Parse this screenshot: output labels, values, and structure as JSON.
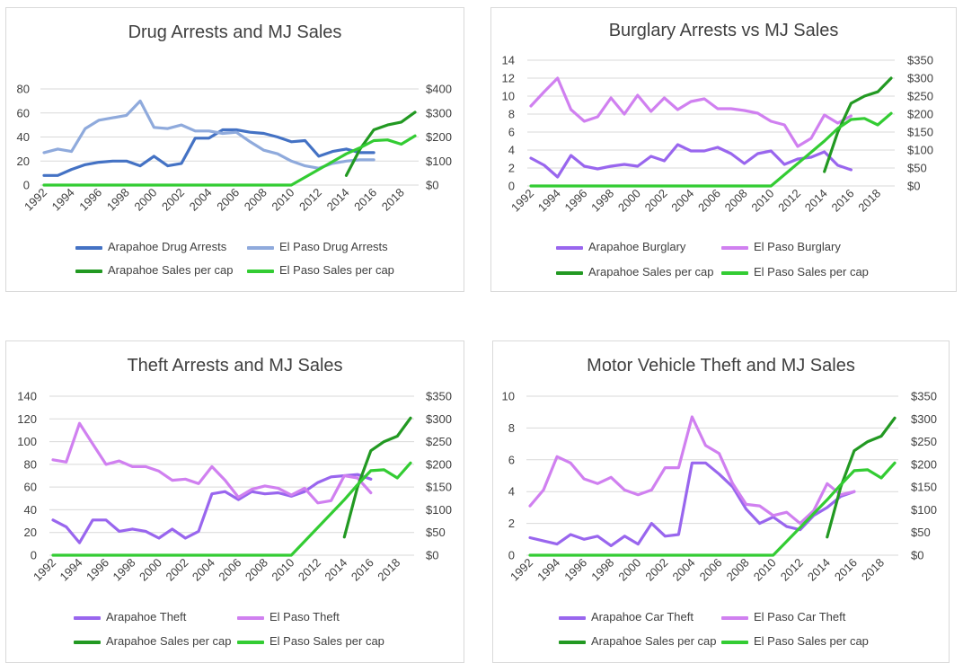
{
  "chart_data": [
    {
      "type": "line",
      "title": "Drug Arrests and MJ Sales",
      "x_ticks": [
        "1992",
        "1994",
        "1996",
        "1998",
        "2000",
        "2002",
        "2004",
        "2006",
        "2008",
        "2010",
        "2012",
        "2014",
        "2016",
        "2018"
      ],
      "y_left": {
        "range": [
          0,
          80
        ],
        "ticks": [
          "0",
          "20",
          "40",
          "60",
          "80"
        ],
        "values": [
          0,
          20,
          40,
          60,
          80
        ]
      },
      "y_right": {
        "range": [
          0,
          400
        ],
        "ticks": [
          "$0",
          "$100",
          "$200",
          "$300",
          "$400"
        ],
        "values": [
          0,
          100,
          200,
          300,
          400
        ]
      },
      "series": [
        {
          "name": "Arapahoe Drug Arrests",
          "axis": "left",
          "color": "#4472c4",
          "x": [
            1992,
            1993,
            1994,
            1995,
            1996,
            1997,
            1998,
            1999,
            2000,
            2001,
            2002,
            2003,
            2004,
            2005,
            2006,
            2007,
            2008,
            2009,
            2010,
            2011,
            2012,
            2013,
            2014,
            2015,
            2016
          ],
          "y": [
            8,
            8,
            13,
            17,
            19,
            20,
            20,
            16,
            24,
            16,
            18,
            39,
            39,
            46,
            46,
            44,
            43,
            40,
            36,
            37,
            24,
            28,
            30,
            27,
            27
          ]
        },
        {
          "name": "El Paso Drug Arrests",
          "axis": "left",
          "color": "#8faadc",
          "x": [
            1992,
            1993,
            1994,
            1995,
            1996,
            1997,
            1998,
            1999,
            2000,
            2001,
            2002,
            2003,
            2004,
            2005,
            2006,
            2007,
            2008,
            2009,
            2010,
            2011,
            2012,
            2013,
            2014,
            2015,
            2016
          ],
          "y": [
            27,
            30,
            28,
            47,
            54,
            56,
            58,
            70,
            48,
            47,
            50,
            45,
            45,
            43,
            44,
            36,
            29,
            26,
            20,
            16,
            14,
            18,
            20,
            21,
            21
          ]
        },
        {
          "name": "Arapahoe Sales per cap",
          "axis": "right",
          "color": "#229922",
          "x": [
            2014,
            2015,
            2016,
            2017,
            2018,
            2019
          ],
          "y": [
            40,
            150,
            230,
            250,
            262,
            303
          ]
        },
        {
          "name": "El Paso Sales per cap",
          "axis": "right",
          "color": "#33cc33",
          "x": [
            1992,
            2010,
            2014,
            2015,
            2016,
            2017,
            2018,
            2019
          ],
          "y": [
            0,
            0,
            130,
            155,
            185,
            188,
            170,
            205
          ]
        }
      ],
      "legend": [
        "Arapahoe Drug Arrests",
        "El Paso Drug Arrests",
        "Arapahoe Sales per cap",
        "El Paso Sales per cap"
      ],
      "legend_placement": "bottom",
      "grid": "horizontal"
    },
    {
      "type": "line",
      "title": "Burglary Arrests vs MJ Sales",
      "x_ticks": [
        "1992",
        "1994",
        "1996",
        "1998",
        "2000",
        "2002",
        "2004",
        "2006",
        "2008",
        "2010",
        "2012",
        "2014",
        "2016",
        "2018"
      ],
      "y_left": {
        "range": [
          0,
          14
        ],
        "ticks": [
          "0",
          "2",
          "4",
          "6",
          "8",
          "10",
          "12",
          "14"
        ],
        "values": [
          0,
          2,
          4,
          6,
          8,
          10,
          12,
          14
        ]
      },
      "y_right": {
        "range": [
          0,
          350
        ],
        "ticks": [
          "$0",
          "$50",
          "$100",
          "$150",
          "$200",
          "$250",
          "$300",
          "$350"
        ],
        "values": [
          0,
          50,
          100,
          150,
          200,
          250,
          300,
          350
        ]
      },
      "series": [
        {
          "name": "Arapahoe Burglary",
          "axis": "left",
          "color": "#9966ee",
          "x": [
            1992,
            1993,
            1994,
            1995,
            1996,
            1997,
            1998,
            1999,
            2000,
            2001,
            2002,
            2003,
            2004,
            2005,
            2006,
            2007,
            2008,
            2009,
            2010,
            2011,
            2012,
            2013,
            2014,
            2015,
            2016
          ],
          "y": [
            3.1,
            2.3,
            1.0,
            3.4,
            2.2,
            1.9,
            2.2,
            2.4,
            2.2,
            3.3,
            2.8,
            4.6,
            3.9,
            3.9,
            4.3,
            3.6,
            2.5,
            3.6,
            3.9,
            2.4,
            3.0,
            3.2,
            3.8,
            2.3,
            1.8
          ]
        },
        {
          "name": "El Paso Burglary",
          "axis": "left",
          "color": "#d080f0",
          "x": [
            1992,
            1993,
            1994,
            1995,
            1996,
            1997,
            1998,
            1999,
            2000,
            2001,
            2002,
            2003,
            2004,
            2005,
            2006,
            2007,
            2008,
            2009,
            2010,
            2011,
            2012,
            2013,
            2014,
            2015,
            2016
          ],
          "y": [
            8.9,
            10.5,
            12.0,
            8.5,
            7.2,
            7.7,
            9.8,
            8.0,
            10.1,
            8.3,
            9.8,
            8.5,
            9.4,
            9.7,
            8.6,
            8.6,
            8.4,
            8.1,
            7.2,
            6.8,
            4.4,
            5.3,
            7.9,
            7.0,
            7.8
          ]
        },
        {
          "name": "Arapahoe Sales per cap",
          "axis": "right",
          "color": "#229922",
          "x": [
            2014,
            2015,
            2016,
            2017,
            2018,
            2019
          ],
          "y": [
            40,
            150,
            230,
            250,
            262,
            300
          ]
        },
        {
          "name": "El Paso Sales per cap",
          "axis": "right",
          "color": "#33cc33",
          "x": [
            1992,
            2010,
            2014,
            2015,
            2016,
            2017,
            2018,
            2019
          ],
          "y": [
            0,
            0,
            125,
            160,
            185,
            188,
            170,
            202
          ]
        }
      ],
      "legend": [
        "Arapahoe Burglary",
        "El Paso Burglary",
        "Arapahoe Sales per cap",
        "El Paso Sales per cap"
      ],
      "legend_placement": "bottom",
      "grid": "horizontal"
    },
    {
      "type": "line",
      "title": "Theft Arrests and MJ Sales",
      "x_ticks": [
        "1992",
        "1994",
        "1996",
        "1998",
        "2000",
        "2002",
        "2004",
        "2006",
        "2008",
        "2010",
        "2012",
        "2014",
        "2016",
        "2018"
      ],
      "y_left": {
        "range": [
          0,
          140
        ],
        "ticks": [
          "0",
          "20",
          "40",
          "60",
          "80",
          "100",
          "120",
          "140"
        ],
        "values": [
          0,
          20,
          40,
          60,
          80,
          100,
          120,
          140
        ]
      },
      "y_right": {
        "range": [
          0,
          350
        ],
        "ticks": [
          "$0",
          "$50",
          "$100",
          "$150",
          "$200",
          "$250",
          "$300",
          "$350"
        ],
        "values": [
          0,
          50,
          100,
          150,
          200,
          250,
          300,
          350
        ]
      },
      "series": [
        {
          "name": "Arapahoe Theft",
          "axis": "left",
          "color": "#9966ee",
          "x": [
            1992,
            1993,
            1994,
            1995,
            1996,
            1997,
            1998,
            1999,
            2000,
            2001,
            2002,
            2003,
            2004,
            2005,
            2006,
            2007,
            2008,
            2009,
            2010,
            2011,
            2012,
            2013,
            2014,
            2015,
            2016
          ],
          "y": [
            31,
            25,
            11,
            31,
            31,
            21,
            23,
            21,
            15,
            23,
            15,
            21,
            54,
            56,
            49,
            56,
            54,
            55,
            52,
            56,
            64,
            69,
            70,
            71,
            67
          ]
        },
        {
          "name": "El Paso Theft",
          "axis": "left",
          "color": "#d080f0",
          "x": [
            1992,
            1993,
            1994,
            1995,
            1996,
            1997,
            1998,
            1999,
            2000,
            2001,
            2002,
            2003,
            2004,
            2005,
            2006,
            2007,
            2008,
            2009,
            2010,
            2011,
            2012,
            2013,
            2014,
            2015,
            2016
          ],
          "y": [
            84,
            82,
            116,
            98,
            80,
            83,
            78,
            78,
            74,
            66,
            67,
            63,
            78,
            66,
            51,
            58,
            61,
            59,
            53,
            59,
            46,
            48,
            70,
            68,
            55
          ]
        },
        {
          "name": "Arapahoe Sales per cap",
          "axis": "right",
          "color": "#229922",
          "x": [
            2014,
            2015,
            2016,
            2017,
            2018,
            2019
          ],
          "y": [
            40,
            150,
            230,
            250,
            262,
            302
          ]
        },
        {
          "name": "El Paso Sales per cap",
          "axis": "right",
          "color": "#33cc33",
          "x": [
            1992,
            2010,
            2014,
            2015,
            2016,
            2017,
            2018,
            2019
          ],
          "y": [
            0,
            0,
            122,
            155,
            186,
            188,
            170,
            203
          ]
        }
      ],
      "legend": [
        "Arapahoe Theft",
        "El Paso Theft",
        "Arapahoe Sales per cap",
        "El Paso Sales per cap"
      ],
      "legend_placement": "bottom",
      "grid": "horizontal"
    },
    {
      "type": "line",
      "title": "Motor Vehicle Theft and MJ Sales",
      "x_ticks": [
        "1992",
        "1994",
        "1996",
        "1998",
        "2000",
        "2002",
        "2004",
        "2006",
        "2008",
        "2010",
        "2012",
        "2014",
        "2016",
        "2018"
      ],
      "y_left": {
        "range": [
          0,
          10
        ],
        "ticks": [
          "0",
          "2",
          "4",
          "6",
          "8",
          "10"
        ],
        "values": [
          0,
          2,
          4,
          6,
          8,
          10
        ]
      },
      "y_right": {
        "range": [
          0,
          350
        ],
        "ticks": [
          "$0",
          "$50",
          "$100",
          "$150",
          "$200",
          "$250",
          "$300",
          "$350"
        ],
        "values": [
          0,
          50,
          100,
          150,
          200,
          250,
          300,
          350
        ]
      },
      "series": [
        {
          "name": "Arapahoe Car Theft",
          "axis": "left",
          "color": "#9966ee",
          "x": [
            1992,
            1993,
            1994,
            1995,
            1996,
            1997,
            1998,
            1999,
            2000,
            2001,
            2002,
            2003,
            2004,
            2005,
            2006,
            2007,
            2008,
            2009,
            2010,
            2011,
            2012,
            2013,
            2014,
            2015,
            2016
          ],
          "y": [
            1.1,
            0.9,
            0.7,
            1.3,
            1.0,
            1.2,
            0.6,
            1.2,
            0.7,
            2.0,
            1.2,
            1.3,
            5.8,
            5.8,
            5.1,
            4.3,
            2.9,
            2.0,
            2.4,
            1.8,
            1.6,
            2.5,
            3.0,
            3.7,
            4.0
          ]
        },
        {
          "name": "El Paso Car Theft",
          "axis": "left",
          "color": "#d080f0",
          "x": [
            1992,
            1993,
            1994,
            1995,
            1996,
            1997,
            1998,
            1999,
            2000,
            2001,
            2002,
            2003,
            2004,
            2005,
            2006,
            2007,
            2008,
            2009,
            2010,
            2011,
            2012,
            2013,
            2014,
            2015,
            2016
          ],
          "y": [
            3.1,
            4.1,
            6.2,
            5.8,
            4.8,
            4.5,
            4.9,
            4.1,
            3.8,
            4.1,
            5.5,
            5.5,
            8.7,
            6.9,
            6.4,
            4.5,
            3.2,
            3.1,
            2.5,
            2.7,
            2.0,
            2.8,
            4.5,
            3.8,
            4.0
          ]
        },
        {
          "name": "Arapahoe Sales per cap",
          "axis": "right",
          "color": "#229922",
          "x": [
            2014,
            2015,
            2016,
            2017,
            2018,
            2019
          ],
          "y": [
            40,
            150,
            230,
            250,
            262,
            302
          ]
        },
        {
          "name": "El Paso Sales per cap",
          "axis": "right",
          "color": "#33cc33",
          "x": [
            1992,
            2010,
            2014,
            2015,
            2016,
            2017,
            2018,
            2019
          ],
          "y": [
            0,
            0,
            122,
            155,
            186,
            188,
            170,
            203
          ]
        }
      ],
      "legend": [
        "Arapahoe Car Theft",
        "El Paso Car Theft",
        "Arapahoe Sales per cap",
        "El Paso Sales per cap"
      ],
      "legend_placement": "bottom",
      "grid": "horizontal"
    }
  ]
}
